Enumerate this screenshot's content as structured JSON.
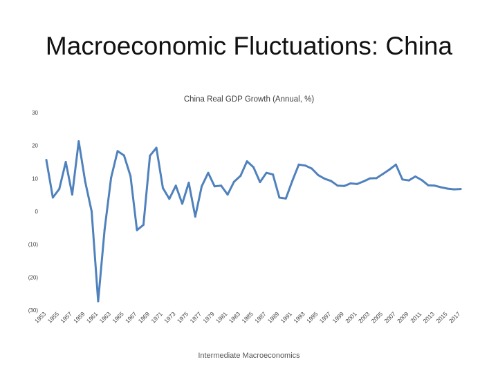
{
  "slide": {
    "title": "Macroeconomic Fluctuations: China",
    "footer": "Intermediate Macroeconomics"
  },
  "chart_data": {
    "type": "line",
    "title": "China Real GDP Growth (Annual, %)",
    "xlabel": "",
    "ylabel": "",
    "ylim": [
      -30,
      30
    ],
    "yticks": [
      30,
      20,
      10,
      0,
      -10,
      -20,
      -30
    ],
    "ytick_labels": [
      "30",
      "20",
      "10",
      "0",
      "(10)",
      "(20)",
      "(30)"
    ],
    "grid": false,
    "legend": "none",
    "line_color": "#4f81bd",
    "xtick_labels": [
      "1953",
      "1955",
      "1957",
      "1959",
      "1961",
      "1963",
      "1965",
      "1967",
      "1969",
      "1971",
      "1973",
      "1975",
      "1977",
      "1979",
      "1981",
      "1983",
      "1985",
      "1987",
      "1989",
      "1991",
      "1993",
      "1995",
      "1997",
      "1999",
      "2001",
      "2003",
      "2005",
      "2007",
      "2009",
      "2011",
      "2013",
      "2015",
      "2017"
    ],
    "x": [
      1953,
      1954,
      1955,
      1956,
      1957,
      1958,
      1959,
      1960,
      1961,
      1962,
      1963,
      1964,
      1965,
      1966,
      1967,
      1968,
      1969,
      1970,
      1971,
      1972,
      1973,
      1974,
      1975,
      1976,
      1977,
      1978,
      1979,
      1980,
      1981,
      1982,
      1983,
      1984,
      1985,
      1986,
      1987,
      1988,
      1989,
      1990,
      1991,
      1992,
      1993,
      1994,
      1995,
      1996,
      1997,
      1998,
      1999,
      2000,
      2001,
      2002,
      2003,
      2004,
      2005,
      2006,
      2007,
      2008,
      2009,
      2010,
      2011,
      2012,
      2013,
      2014,
      2015,
      2016,
      2017
    ],
    "series": [
      {
        "values": [
          15.6,
          4.2,
          6.8,
          15.0,
          5.1,
          21.3,
          9.0,
          0.0,
          -27.3,
          -5.6,
          10.2,
          18.3,
          17.0,
          10.7,
          -5.7,
          -4.1,
          16.9,
          19.3,
          7.1,
          3.8,
          7.8,
          2.3,
          8.7,
          -1.6,
          7.6,
          11.7,
          7.6,
          7.8,
          5.1,
          9.0,
          10.8,
          15.2,
          13.4,
          8.9,
          11.7,
          11.2,
          4.2,
          3.9,
          9.3,
          14.2,
          13.9,
          13.0,
          11.0,
          9.9,
          9.2,
          7.8,
          7.7,
          8.5,
          8.3,
          9.1,
          10.0,
          10.1,
          11.4,
          12.7,
          14.2,
          9.7,
          9.4,
          10.6,
          9.5,
          7.9,
          7.8,
          7.3,
          6.9,
          6.7,
          6.8
        ]
      }
    ]
  }
}
